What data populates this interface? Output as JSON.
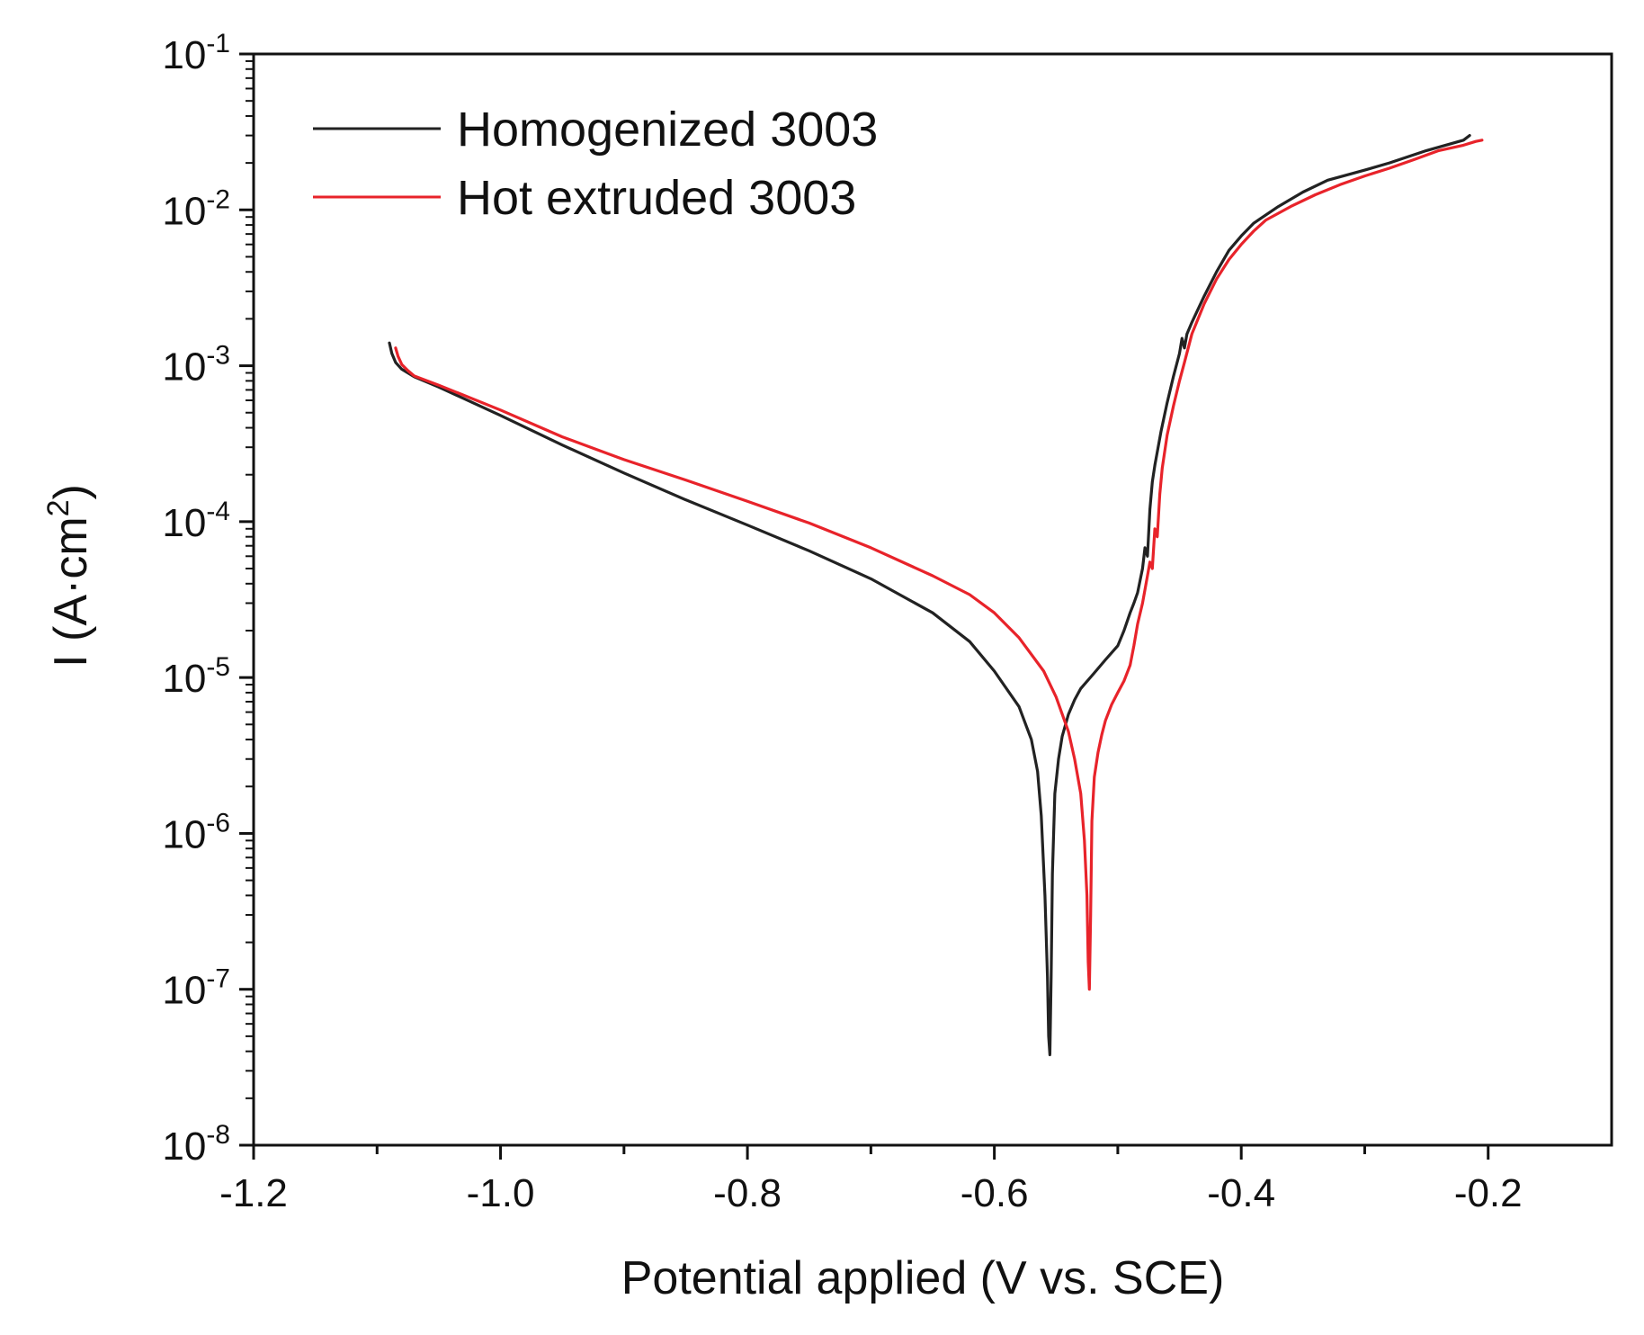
{
  "chart_data": {
    "type": "line",
    "title": "",
    "xlabel": "Potential applied (V vs. SCE)",
    "ylabel": "I (A·cm²)",
    "ylabel_parts": {
      "pre": "I (A·cm",
      "sup": "2",
      "post": ")"
    },
    "xlim": [
      -1.2,
      -0.1
    ],
    "ylim": [
      1e-08,
      0.1
    ],
    "yscale": "log",
    "xticks": [
      -1.2,
      -1.0,
      -0.8,
      -0.6,
      -0.4,
      -0.2
    ],
    "xtick_labels": [
      "-1.2",
      "-1.0",
      "-0.8",
      "-0.6",
      "-0.4",
      "-0.2"
    ],
    "yticks": [
      {
        "value": 1e-08,
        "base": "10",
        "exp": "-8"
      },
      {
        "value": 1e-07,
        "base": "10",
        "exp": "-7"
      },
      {
        "value": 1e-06,
        "base": "10",
        "exp": "-6"
      },
      {
        "value": 1e-05,
        "base": "10",
        "exp": "-5"
      },
      {
        "value": 0.0001,
        "base": "10",
        "exp": "-4"
      },
      {
        "value": 0.001,
        "base": "10",
        "exp": "-3"
      },
      {
        "value": 0.01,
        "base": "10",
        "exp": "-2"
      },
      {
        "value": 0.1,
        "base": "10",
        "exp": "-1"
      }
    ],
    "legend": {
      "position": "top-left"
    },
    "series": [
      {
        "name": "Homogenized 3003",
        "color": "#222222",
        "x": [
          -1.09,
          -1.088,
          -1.085,
          -1.08,
          -1.07,
          -1.05,
          -1.0,
          -0.95,
          -0.9,
          -0.85,
          -0.8,
          -0.75,
          -0.7,
          -0.65,
          -0.62,
          -0.6,
          -0.58,
          -0.57,
          -0.565,
          -0.562,
          -0.559,
          -0.557,
          -0.556,
          -0.555,
          -0.554,
          -0.553,
          -0.551,
          -0.548,
          -0.545,
          -0.54,
          -0.535,
          -0.53,
          -0.52,
          -0.51,
          -0.5,
          -0.495,
          -0.49,
          -0.487,
          -0.484,
          -0.48,
          -0.478,
          -0.476,
          -0.474,
          -0.472,
          -0.47,
          -0.465,
          -0.46,
          -0.455,
          -0.45,
          -0.448,
          -0.446,
          -0.444,
          -0.44,
          -0.43,
          -0.42,
          -0.41,
          -0.4,
          -0.39,
          -0.37,
          -0.35,
          -0.33,
          -0.3,
          -0.28,
          -0.25,
          -0.22,
          -0.215
        ],
        "y": [
          0.0014,
          0.0012,
          0.00105,
          0.00095,
          0.00085,
          0.00073,
          0.00048,
          0.00031,
          0.000205,
          0.000138,
          9.5e-05,
          6.5e-05,
          4.3e-05,
          2.6e-05,
          1.7e-05,
          1.1e-05,
          6.5e-06,
          4e-06,
          2.5e-06,
          1.3e-06,
          4e-07,
          1.2e-07,
          5e-08,
          3.8e-08,
          1.2e-07,
          5.5e-07,
          1.8e-06,
          3e-06,
          4.2e-06,
          5.8e-06,
          7.2e-06,
          8.5e-06,
          1.05e-05,
          1.3e-05,
          1.6e-05,
          2e-05,
          2.6e-05,
          3e-05,
          3.5e-05,
          5e-05,
          6.8e-05,
          6e-05,
          0.00012,
          0.00018,
          0.00023,
          0.00038,
          0.00058,
          0.00085,
          0.0012,
          0.0015,
          0.0013,
          0.0016,
          0.0019,
          0.0028,
          0.004,
          0.0055,
          0.0068,
          0.0082,
          0.0105,
          0.013,
          0.0155,
          0.018,
          0.02,
          0.024,
          0.028,
          0.03
        ]
      },
      {
        "name": "Hot extruded 3003",
        "color": "#e8232a",
        "x": [
          -1.085,
          -1.083,
          -1.08,
          -1.075,
          -1.07,
          -1.05,
          -1.0,
          -0.95,
          -0.9,
          -0.85,
          -0.8,
          -0.75,
          -0.7,
          -0.65,
          -0.62,
          -0.6,
          -0.58,
          -0.56,
          -0.55,
          -0.54,
          -0.535,
          -0.53,
          -0.527,
          -0.525,
          -0.524,
          -0.523,
          -0.522,
          -0.521,
          -0.519,
          -0.516,
          -0.513,
          -0.51,
          -0.505,
          -0.5,
          -0.495,
          -0.49,
          -0.487,
          -0.484,
          -0.48,
          -0.476,
          -0.474,
          -0.472,
          -0.47,
          -0.468,
          -0.466,
          -0.464,
          -0.46,
          -0.455,
          -0.45,
          -0.446,
          -0.44,
          -0.43,
          -0.42,
          -0.41,
          -0.4,
          -0.39,
          -0.38,
          -0.36,
          -0.34,
          -0.32,
          -0.3,
          -0.28,
          -0.26,
          -0.24,
          -0.22,
          -0.21,
          -0.205
        ],
        "y": [
          0.0013,
          0.00115,
          0.00102,
          0.00093,
          0.00086,
          0.00075,
          0.00052,
          0.00035,
          0.00025,
          0.000185,
          0.000135,
          9.8e-05,
          6.8e-05,
          4.5e-05,
          3.4e-05,
          2.6e-05,
          1.8e-05,
          1.1e-05,
          7.5e-06,
          4.5e-06,
          3e-06,
          1.8e-06,
          9e-07,
          4e-07,
          1.5e-07,
          1e-07,
          3e-07,
          1.2e-06,
          2.3e-06,
          3.3e-06,
          4.3e-06,
          5.3e-06,
          6.7e-06,
          8e-06,
          9.5e-06,
          1.2e-05,
          1.6e-05,
          2.2e-05,
          3e-05,
          4.5e-05,
          5.5e-05,
          5e-05,
          9e-05,
          8e-05,
          0.00015,
          0.00022,
          0.00036,
          0.00055,
          0.0008,
          0.00105,
          0.0016,
          0.0025,
          0.0036,
          0.0048,
          0.006,
          0.0073,
          0.0086,
          0.0105,
          0.0125,
          0.0145,
          0.0165,
          0.0185,
          0.021,
          0.024,
          0.026,
          0.0275,
          0.028
        ]
      }
    ]
  }
}
